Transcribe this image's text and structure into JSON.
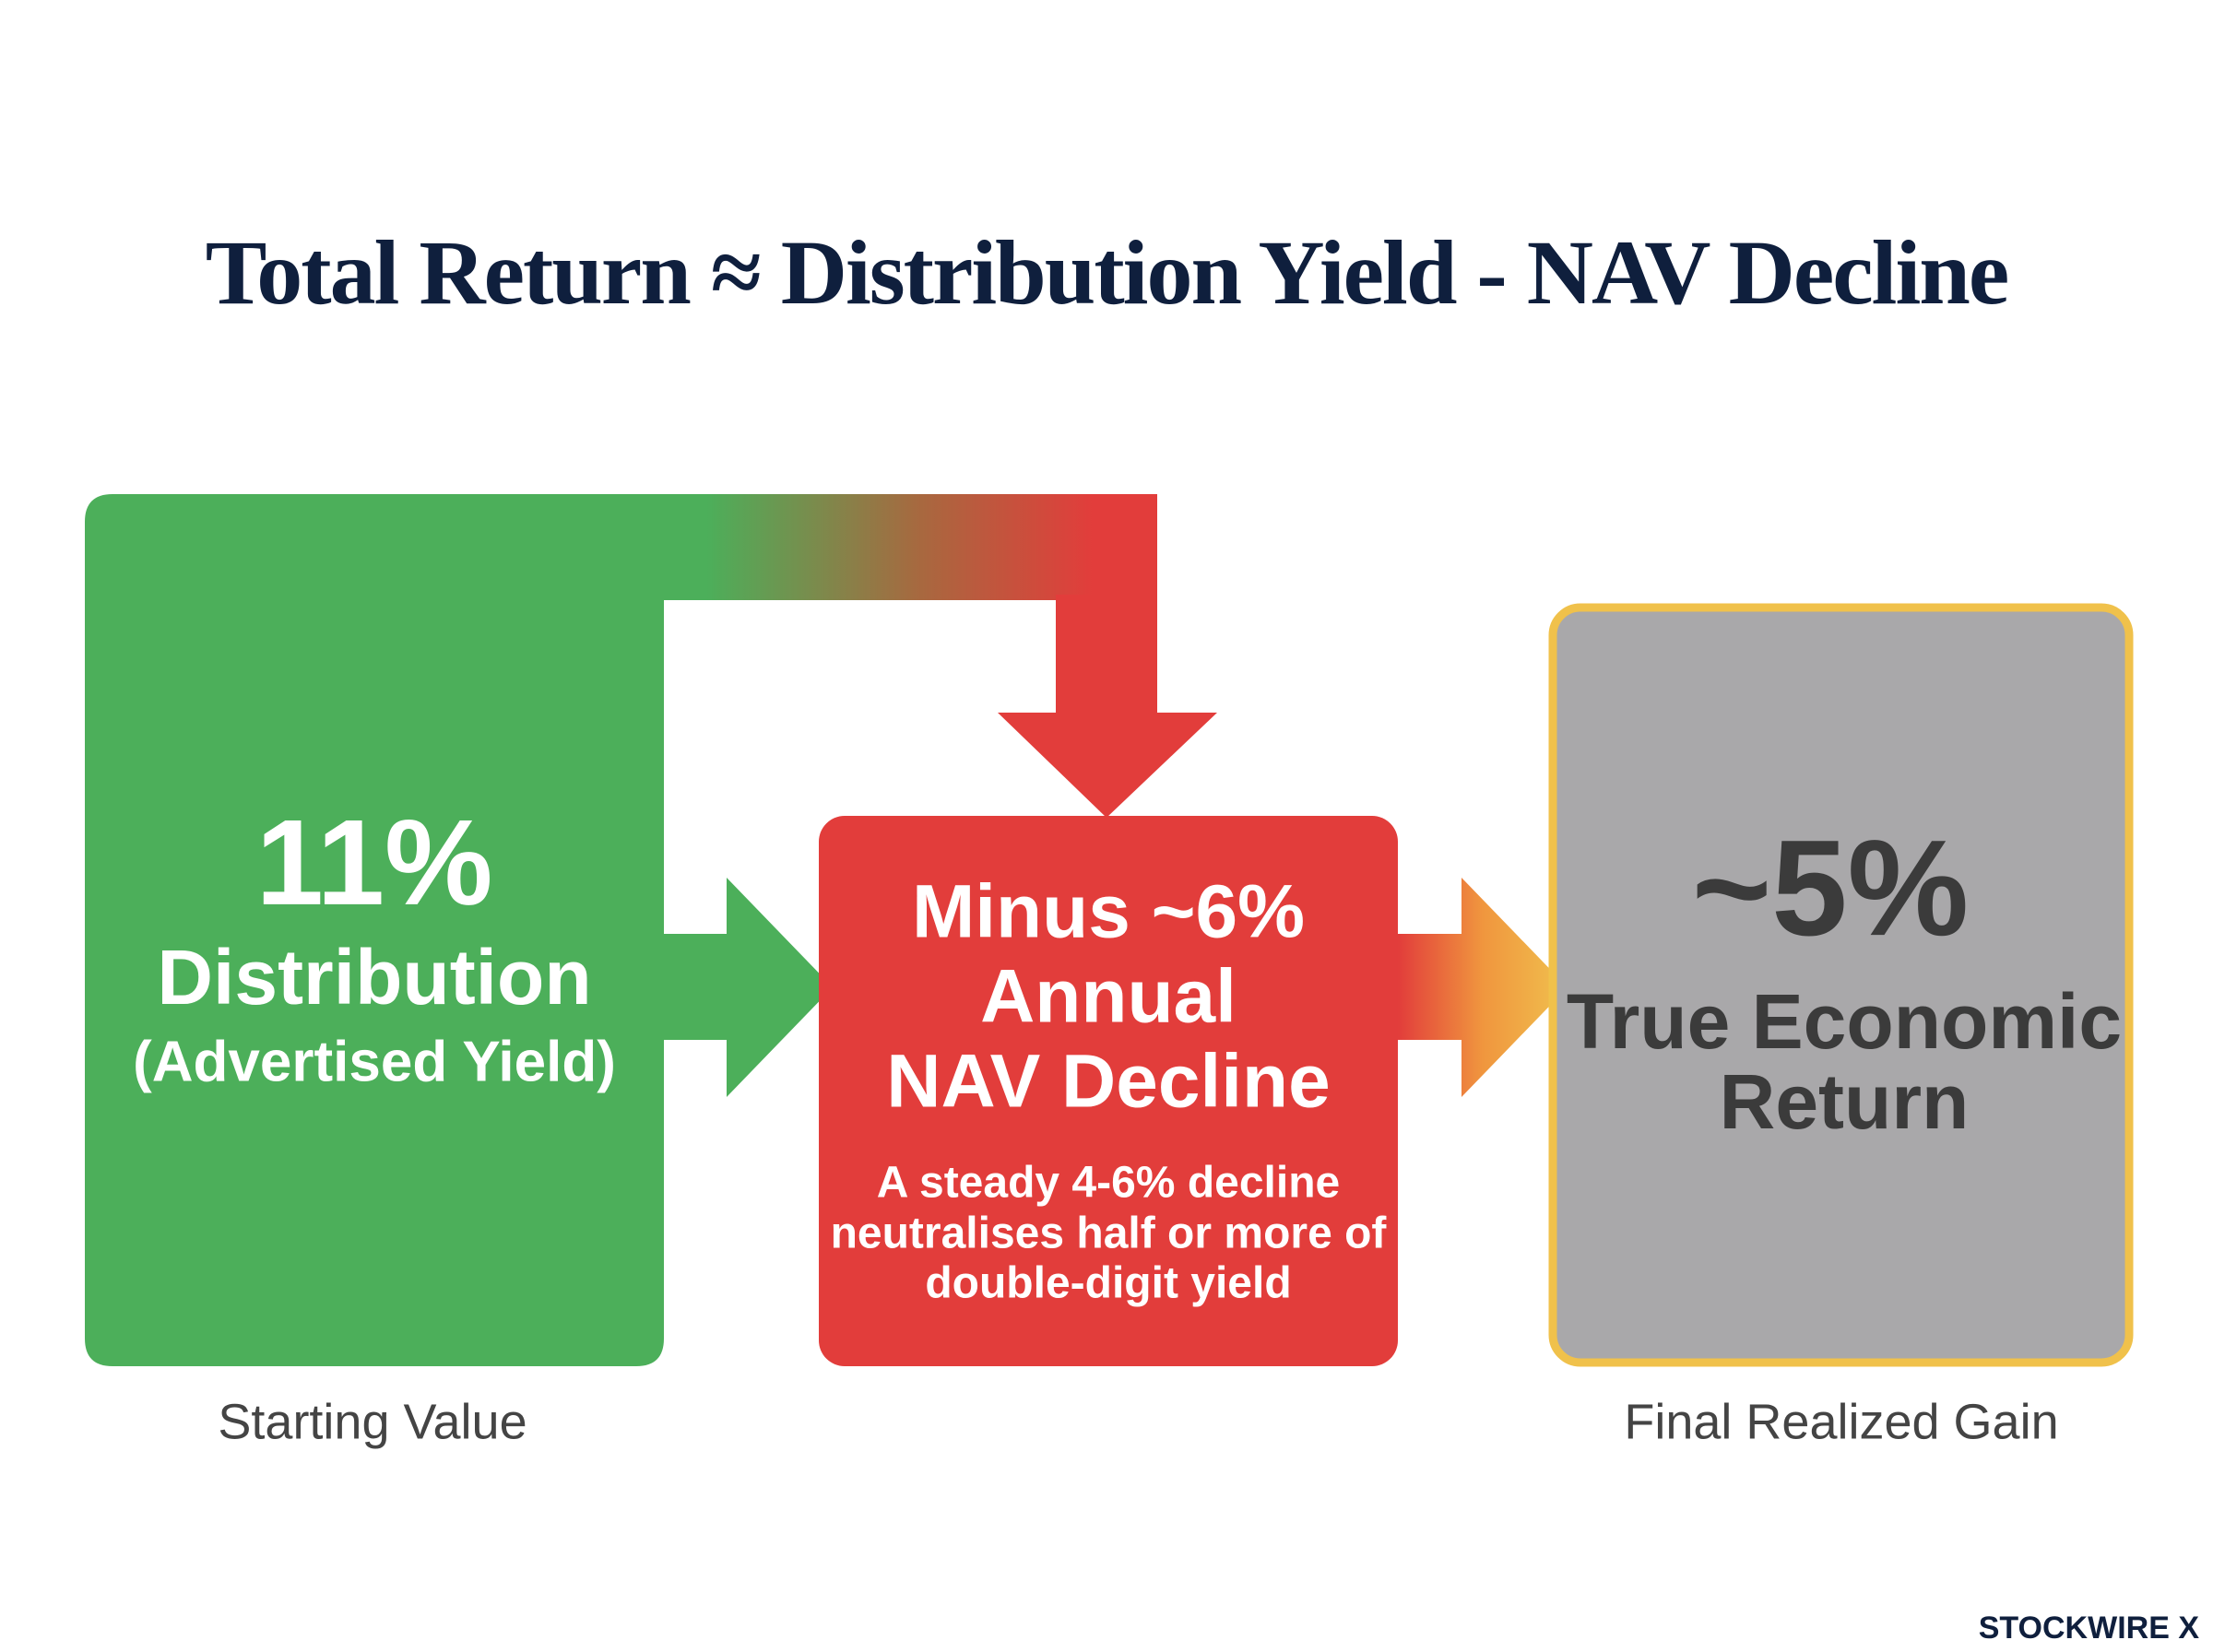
{
  "title": "Total Return ≈ Distribution Yield - NAV Decline",
  "left_box": {
    "value": "11%",
    "label": "Distribution",
    "sublabel": "(Advertised Yield)"
  },
  "middle_box": {
    "lines": [
      "Minus ~6%",
      "Annual",
      "NAV Decline"
    ],
    "note": [
      "A steady 4-6% decline",
      "neutralises half or more of",
      "double-digit yield"
    ]
  },
  "right_box": {
    "value": "~5%",
    "lines": [
      "True Economic",
      "Return"
    ]
  },
  "captions": {
    "left": "Starting Value",
    "right": "Final Realized Gain"
  },
  "brand": "STOCKWIRE X"
}
